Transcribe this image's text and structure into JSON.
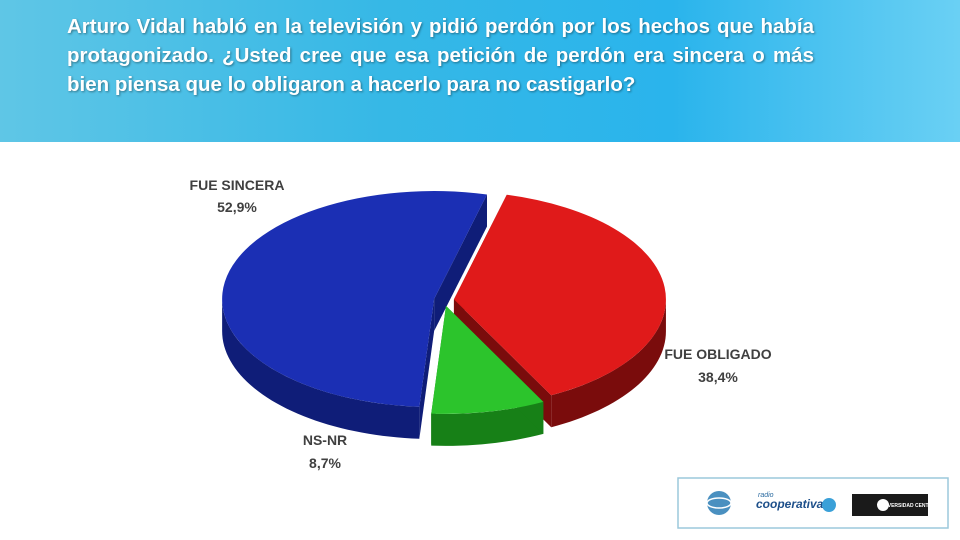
{
  "header": {
    "title": "Arturo Vidal habló en la televisión y pidió perdón por los hechos que había protagonizado. ¿Usted cree que esa petición de perdón era sincera o más bien piensa que lo obligaron a hacerlo para no castigarlo?"
  },
  "chart_data": {
    "type": "pie",
    "categories": [
      "FUE SINCERA",
      "FUE OBLIGADO",
      "NS-NR"
    ],
    "values": [
      52.9,
      38.4,
      8.7
    ],
    "value_labels": [
      "52,9%",
      "38,4%",
      "8,7%"
    ],
    "colors": [
      "#1b2fb4",
      "#e01a1a",
      "#2cc42c"
    ],
    "side_colors": [
      "#0f1d78",
      "#7a0c0c",
      "#178017"
    ]
  },
  "logos": {
    "radio": "radio",
    "cooperativa": "cooperativa",
    "university": "UNIVERSIDAD CENTRAL"
  }
}
